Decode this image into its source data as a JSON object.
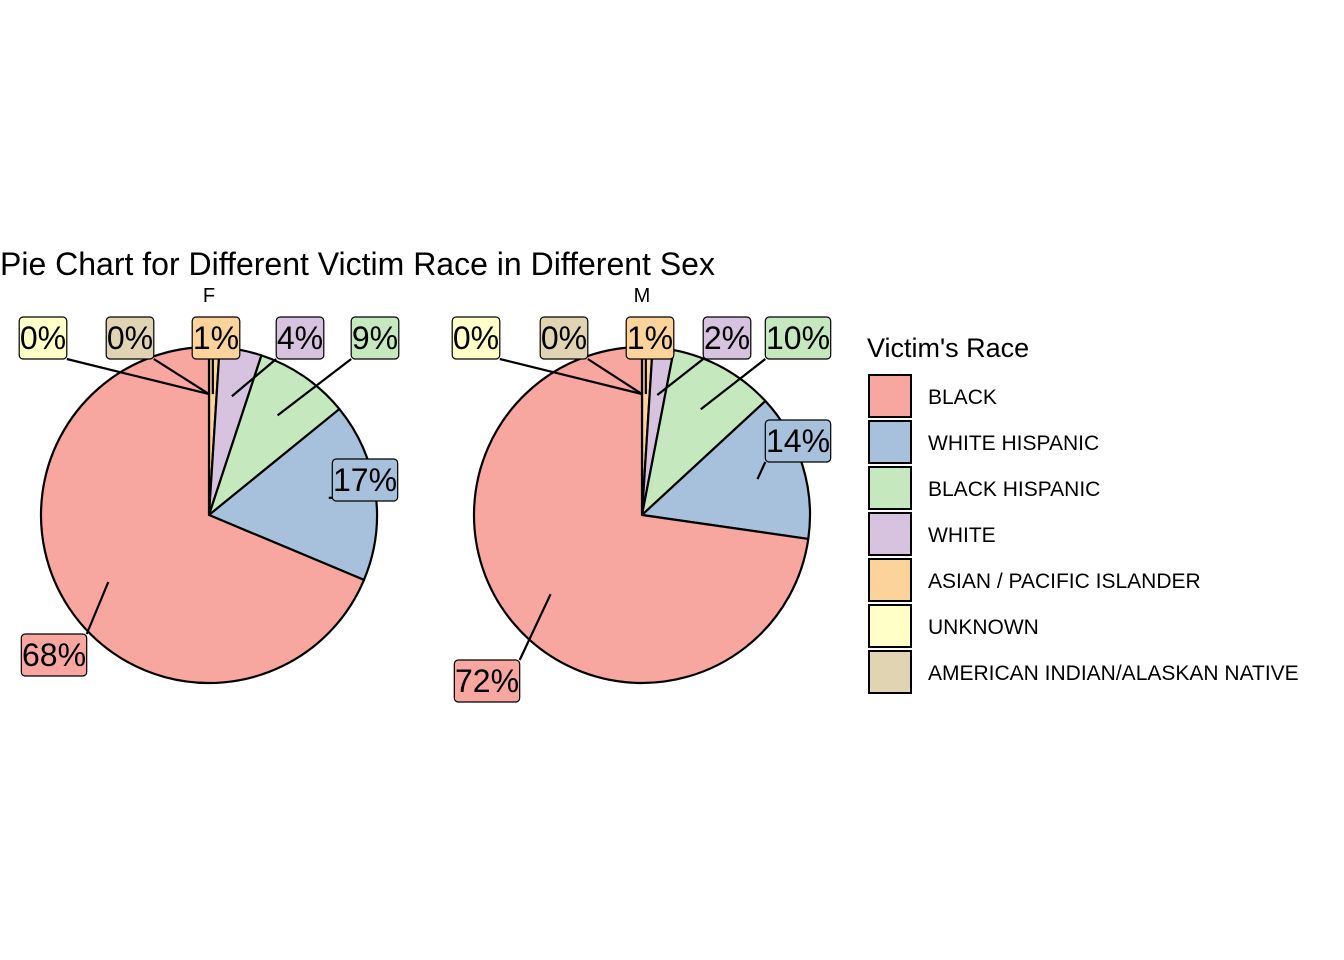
{
  "chart_data": {
    "type": "pie",
    "title": "Pie Chart for Different Victim Race in Different Sex",
    "legend": {
      "title": "Victim's Race",
      "placement": "right",
      "entries": [
        {
          "name": "BLACK",
          "color": "#F8A6A0"
        },
        {
          "name": "WHITE HISPANIC",
          "color": "#A7C1DC"
        },
        {
          "name": "BLACK HISPANIC",
          "color": "#C5E8BF"
        },
        {
          "name": "WHITE",
          "color": "#D7C3E0"
        },
        {
          "name": "ASIAN / PACIFIC ISLANDER",
          "color": "#FDD39C"
        },
        {
          "name": "UNKNOWN",
          "color": "#FFFFC7"
        },
        {
          "name": "AMERICAN INDIAN/ALASKAN NATIVE",
          "color": "#E0D4B3"
        }
      ]
    },
    "facets": [
      {
        "name": "F",
        "slices": [
          {
            "category": "BLACK",
            "value": 0.68,
            "label": "68%"
          },
          {
            "category": "WHITE HISPANIC",
            "value": 0.17,
            "label": "17%"
          },
          {
            "category": "BLACK HISPANIC",
            "value": 0.09,
            "label": "9%"
          },
          {
            "category": "WHITE",
            "value": 0.04,
            "label": "4%"
          },
          {
            "category": "ASIAN / PACIFIC ISLANDER",
            "value": 0.01,
            "label": "1%"
          },
          {
            "category": "UNKNOWN",
            "value": 0.0,
            "label": "0%"
          },
          {
            "category": "AMERICAN INDIAN/ALASKAN NATIVE",
            "value": 0.0,
            "label": "0%"
          }
        ]
      },
      {
        "name": "M",
        "slices": [
          {
            "category": "BLACK",
            "value": 0.72,
            "label": "72%"
          },
          {
            "category": "WHITE HISPANIC",
            "value": 0.14,
            "label": "14%"
          },
          {
            "category": "BLACK HISPANIC",
            "value": 0.1,
            "label": "10%"
          },
          {
            "category": "WHITE",
            "value": 0.02,
            "label": "2%"
          },
          {
            "category": "ASIAN / PACIFIC ISLANDER",
            "value": 0.01,
            "label": "1%"
          },
          {
            "category": "UNKNOWN",
            "value": 0.0,
            "label": "0%"
          },
          {
            "category": "AMERICAN INDIAN/ALASKAN NATIVE",
            "value": 0.0,
            "label": "0%"
          }
        ]
      }
    ]
  }
}
